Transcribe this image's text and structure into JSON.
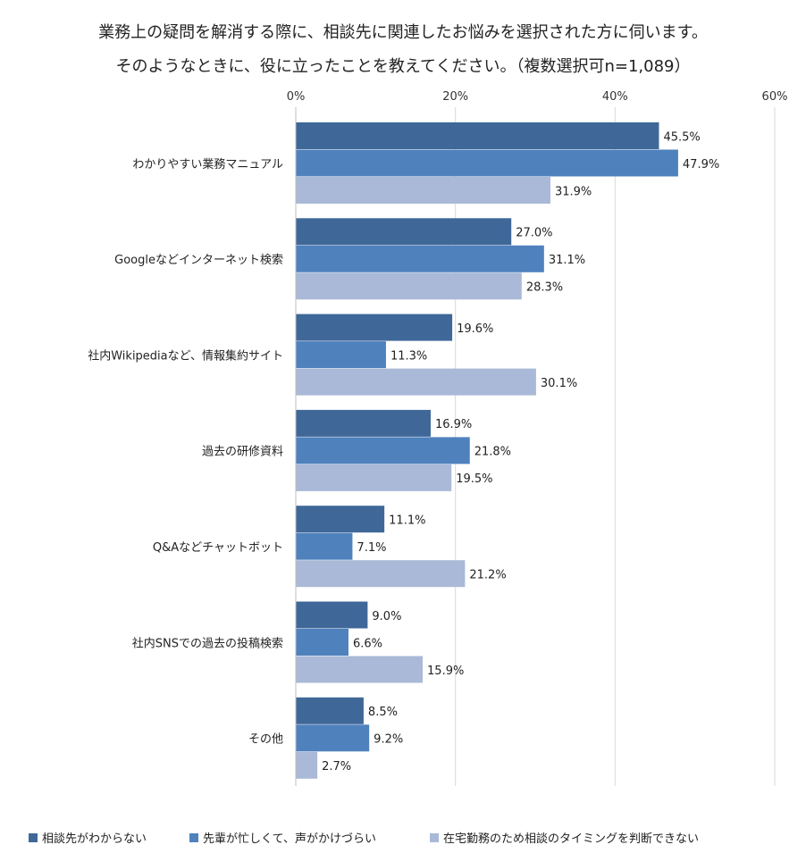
{
  "title_line1": "業務上の疑問を解消する際に、相談先に関連したお悩みを選択された方に伺います。",
  "title_line2": "そのようなときに、役に立ったことを教えてください。（複数選択可n=1,089）",
  "chart_data": {
    "type": "bar",
    "orientation": "horizontal",
    "xlim": [
      0,
      60
    ],
    "ticks": [
      0,
      20,
      40,
      60
    ],
    "tick_labels": [
      "0%",
      "20%",
      "40%",
      "60%"
    ],
    "grid": true,
    "legend_position": "bottom",
    "categories": [
      "わかりやすい業務マニュアル",
      "Googleなどインターネット検索",
      "社内Wikipediaなど、情報集約サイト",
      "過去の研修資料",
      "Q&Aなどチャットボット",
      "社内SNSでの過去の投稿検索",
      "その他"
    ],
    "series": [
      {
        "name": "相談先がわからない",
        "color": "#3f6899",
        "values": [
          45.5,
          27.0,
          19.6,
          16.9,
          11.1,
          9.0,
          8.5
        ],
        "labels": [
          "45.5%",
          "27.0%",
          "19.6%",
          "16.9%",
          "11.1%",
          "9.0%",
          "8.5%"
        ]
      },
      {
        "name": "先輩が忙しくて、声がかけづらい",
        "color": "#4f81bd",
        "values": [
          47.9,
          31.1,
          11.3,
          21.8,
          7.1,
          6.6,
          9.2
        ],
        "labels": [
          "47.9%",
          "31.1%",
          "11.3%",
          "21.8%",
          "7.1%",
          "6.6%",
          "9.2%"
        ]
      },
      {
        "name": "在宅勤務のため相談のタイミングを判断できない",
        "color": "#a9b9d7",
        "values": [
          31.9,
          28.3,
          30.1,
          19.5,
          21.2,
          15.9,
          2.7
        ],
        "labels": [
          "31.9%",
          "28.3%",
          "30.1%",
          "19.5%",
          "21.2%",
          "15.9%",
          "2.7%"
        ]
      }
    ]
  }
}
